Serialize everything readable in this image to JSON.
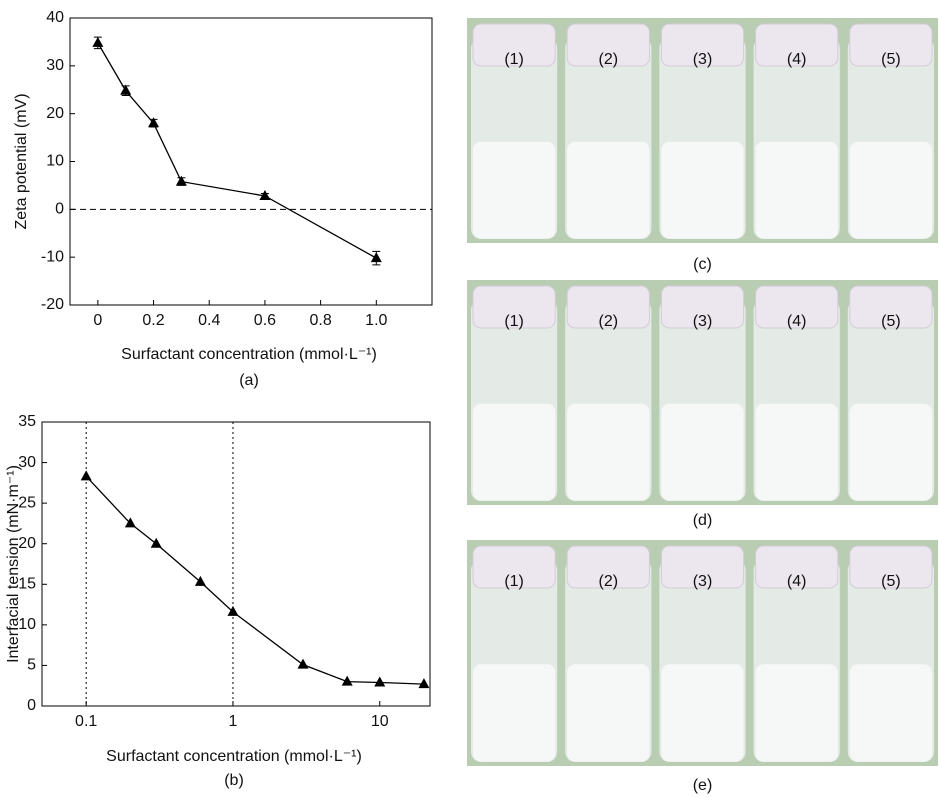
{
  "chart_data": [
    {
      "type": "line",
      "caption": "(a)",
      "x_label": "Surfactant concentration (mmol·L⁻¹)",
      "y_label": "Zeta potential (mV)",
      "x": [
        0,
        0.1,
        0.2,
        0.3,
        0.6,
        1.0
      ],
      "series": [
        {
          "color": "#000000",
          "values": [
            34.8,
            24.8,
            18,
            5.8,
            2.8,
            -10.2
          ],
          "errors": [
            1.2,
            1.0,
            0.8,
            0.8,
            0.5,
            1.4
          ]
        }
      ],
      "xlim": [
        -0.1,
        1.2
      ],
      "xticks": [
        0,
        0.2,
        0.4,
        0.6,
        0.8,
        {
          "value": 1,
          "label": "1.0"
        }
      ],
      "ylim": [
        -20,
        40
      ],
      "yticks": [
        -20,
        -10,
        0,
        10,
        20,
        30,
        40
      ],
      "hline": 0
    },
    {
      "type": "line",
      "caption": "(b)",
      "x_label": "Surfactant concentration (mmol·L⁻¹)",
      "y_label": "Interfacial tension (mN·m⁻¹)",
      "xscale": "log",
      "x": [
        0.1,
        0.2,
        0.3,
        0.6,
        1,
        3,
        6,
        10,
        20
      ],
      "series": [
        {
          "color": "#000000",
          "values": [
            28.3,
            22.5,
            20,
            15.3,
            11.6,
            5.1,
            3,
            2.9,
            2.7
          ]
        }
      ],
      "xlim": [
        0.05,
        22
      ],
      "xticks": [
        0.1,
        1,
        10
      ],
      "ylim": [
        0,
        35
      ],
      "yticks": [
        0,
        5,
        10,
        15,
        20,
        25,
        30,
        35
      ],
      "vlines": [
        0.1,
        1
      ]
    }
  ],
  "photos": [
    {
      "caption": "(c)",
      "labels": [
        "(1)",
        "(2)",
        "(3)",
        "(4)",
        "(5)"
      ]
    },
    {
      "caption": "(d)",
      "labels": [
        "(1)",
        "(2)",
        "(3)",
        "(4)",
        "(5)"
      ]
    },
    {
      "caption": "(e)",
      "labels": [
        "(1)",
        "(2)",
        "(3)",
        "(4)",
        "(5)"
      ]
    }
  ]
}
